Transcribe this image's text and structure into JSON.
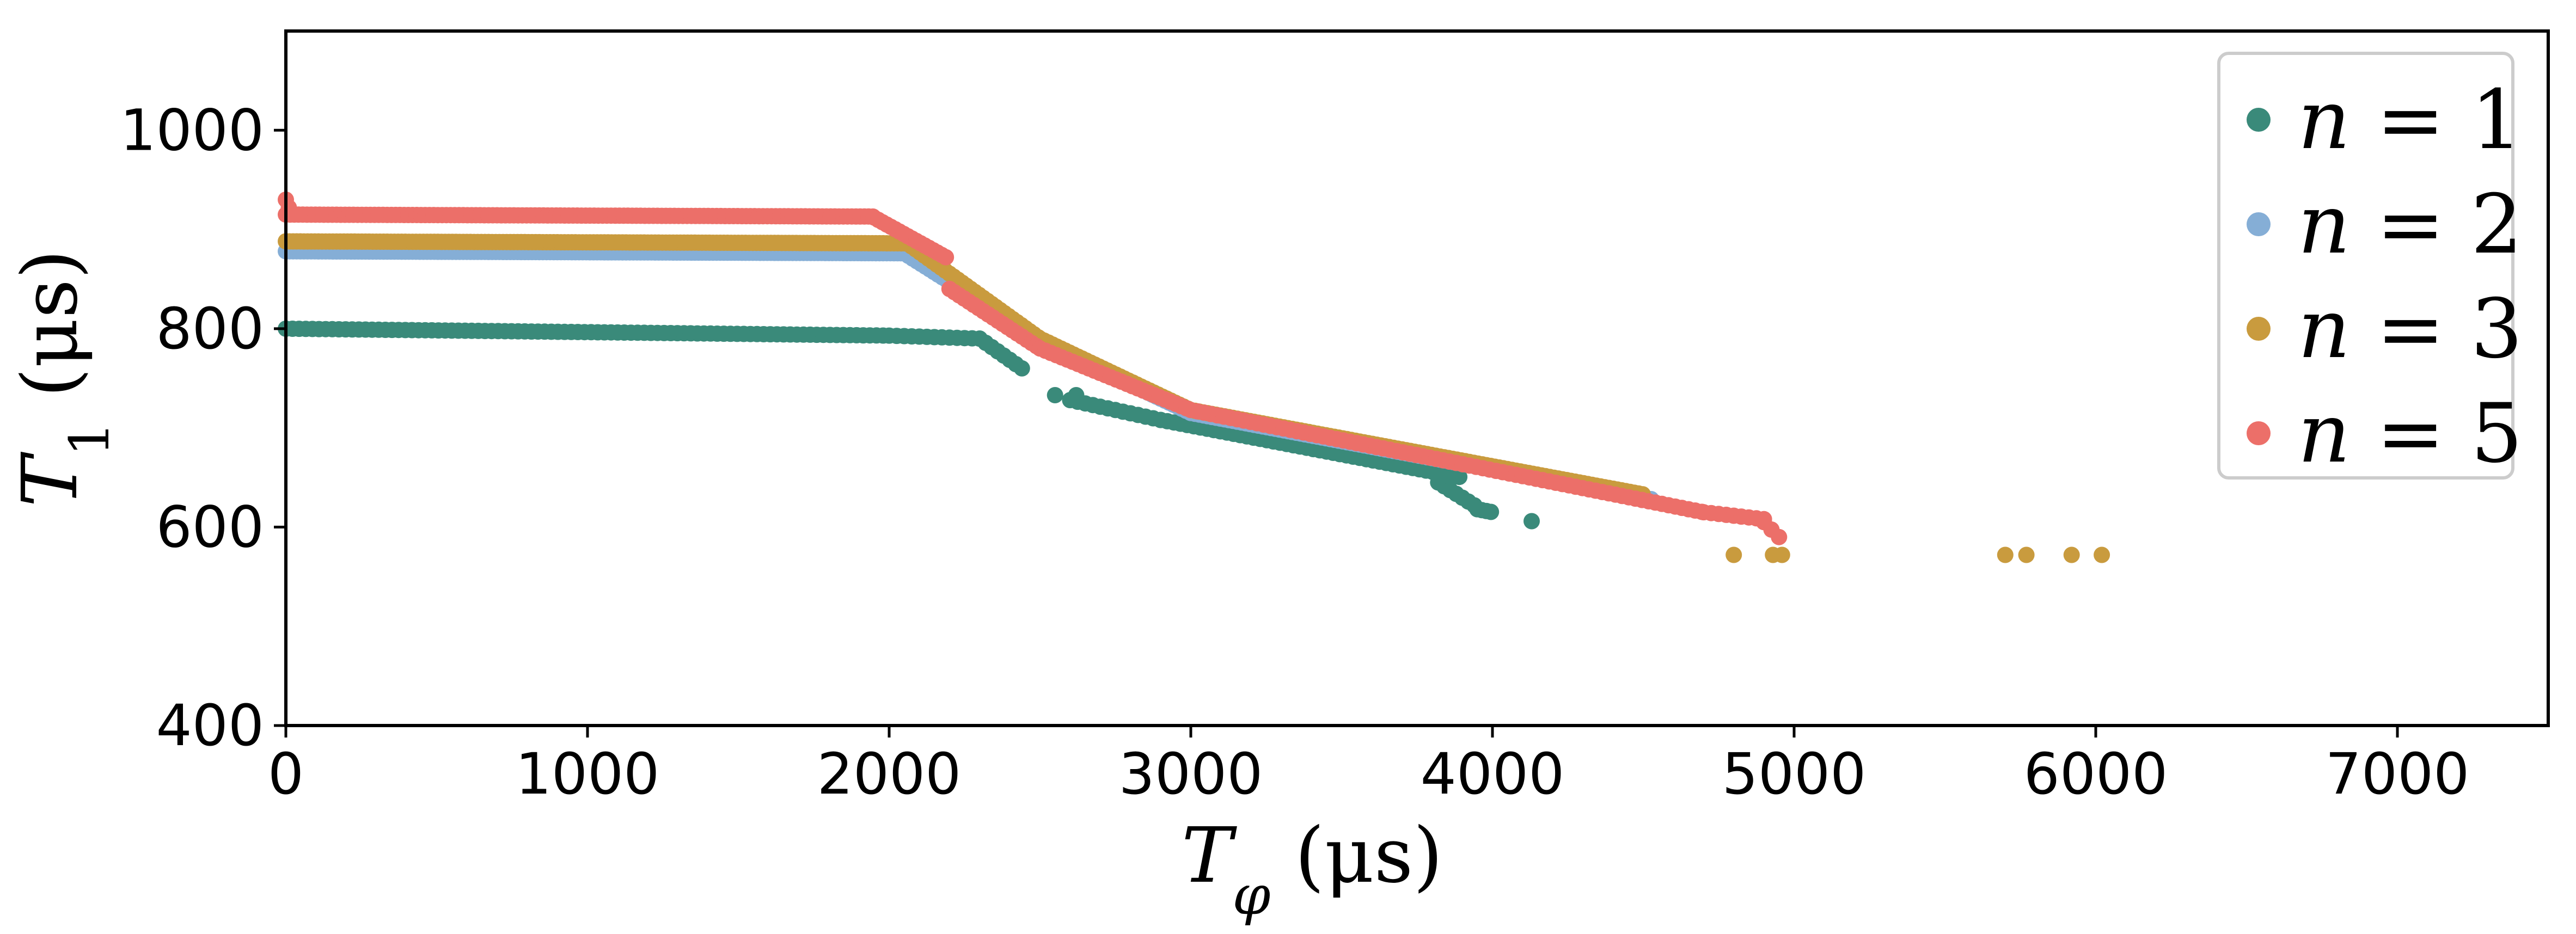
{
  "chart_data": {
    "type": "scatter",
    "title": "",
    "xlabel": "T_φ (μs)",
    "xlabel_parts": {
      "symbol": "T",
      "subscript": "φ",
      "unit": " (μs)"
    },
    "ylabel": "T_1 (μs)",
    "ylabel_parts": {
      "symbol": "T",
      "subscript": "1",
      "unit": " (μs)"
    },
    "xlim": [
      0,
      7500
    ],
    "ylim": [
      400,
      1100
    ],
    "xticks": [
      0,
      1000,
      2000,
      3000,
      4000,
      5000,
      6000,
      7000
    ],
    "yticks": [
      400,
      600,
      800,
      1000
    ],
    "grid": false,
    "legend_position": "top-right",
    "series": [
      {
        "name": "n = 1",
        "var": "n",
        "value": "1",
        "color": "#3a8a7a",
        "segments": [
          {
            "x0": 0,
            "x1": 2000,
            "y0": 800,
            "y1": 793,
            "step": 22
          },
          {
            "x0": 2000,
            "x1": 2300,
            "y0": 793,
            "y1": 790,
            "step": 25
          },
          {
            "x0": 2300,
            "x1": 2440,
            "y0": 790,
            "y1": 760,
            "step": 20
          },
          {
            "x0": 2600,
            "x1": 2900,
            "y0": 728,
            "y1": 708,
            "step": 25
          },
          {
            "x0": 2900,
            "x1": 3900,
            "y0": 708,
            "y1": 650,
            "step": 22
          },
          {
            "x0": 3820,
            "x1": 3950,
            "y0": 645,
            "y1": 620,
            "step": 20
          },
          {
            "x0": 3950,
            "x1": 4000,
            "y0": 618,
            "y1": 615,
            "step": 15
          }
        ],
        "points": [
          [
            2550,
            733
          ],
          [
            2620,
            733
          ],
          [
            4130,
            606
          ]
        ]
      },
      {
        "name": "n = 2",
        "var": "n",
        "value": "2",
        "color": "#85aed6",
        "segments": [
          {
            "x0": 0,
            "x1": 2050,
            "y0": 878,
            "y1": 876,
            "step": 12
          },
          {
            "x0": 2050,
            "x1": 2550,
            "y0": 876,
            "y1": 780,
            "step": 14
          },
          {
            "x0": 2550,
            "x1": 3000,
            "y0": 780,
            "y1": 715,
            "step": 14
          },
          {
            "x0": 3000,
            "x1": 4530,
            "y0": 715,
            "y1": 628,
            "step": 14
          }
        ],
        "points": []
      },
      {
        "name": "n = 3",
        "var": "n",
        "value": "3",
        "color": "#c99b3e",
        "segments": [
          {
            "x0": 0,
            "x1": 2060,
            "y0": 888,
            "y1": 886,
            "step": 12
          },
          {
            "x0": 2060,
            "x1": 2500,
            "y0": 886,
            "y1": 790,
            "step": 14
          },
          {
            "x0": 2500,
            "x1": 3000,
            "y0": 790,
            "y1": 718,
            "step": 14
          },
          {
            "x0": 3000,
            "x1": 4500,
            "y0": 718,
            "y1": 633,
            "step": 14
          }
        ],
        "points": [
          [
            4800,
            572
          ],
          [
            4930,
            572
          ],
          [
            4960,
            572
          ],
          [
            5700,
            572
          ],
          [
            5770,
            572
          ],
          [
            5920,
            572
          ],
          [
            6020,
            572
          ]
        ]
      },
      {
        "name": "n = 5",
        "var": "n",
        "value": "5",
        "color": "#ec6f69",
        "segments": [
          {
            "x0": 0,
            "x1": 1950,
            "y0": 915,
            "y1": 913,
            "step": 14
          },
          {
            "x0": 1950,
            "x1": 2200,
            "y0": 912,
            "y1": 870,
            "step": 14
          },
          {
            "x0": 2200,
            "x1": 2500,
            "y0": 840,
            "y1": 780,
            "step": 16
          },
          {
            "x0": 2500,
            "x1": 3000,
            "y0": 780,
            "y1": 718,
            "step": 18
          },
          {
            "x0": 3000,
            "x1": 4700,
            "y0": 718,
            "y1": 615,
            "step": 22
          },
          {
            "x0": 4700,
            "x1": 4900,
            "y0": 615,
            "y1": 608,
            "step": 25
          },
          {
            "x0": 4900,
            "x1": 4950,
            "y0": 605,
            "y1": 590,
            "step": 25
          }
        ],
        "points": [
          [
            0,
            930
          ],
          [
            10,
            922
          ]
        ]
      }
    ]
  }
}
